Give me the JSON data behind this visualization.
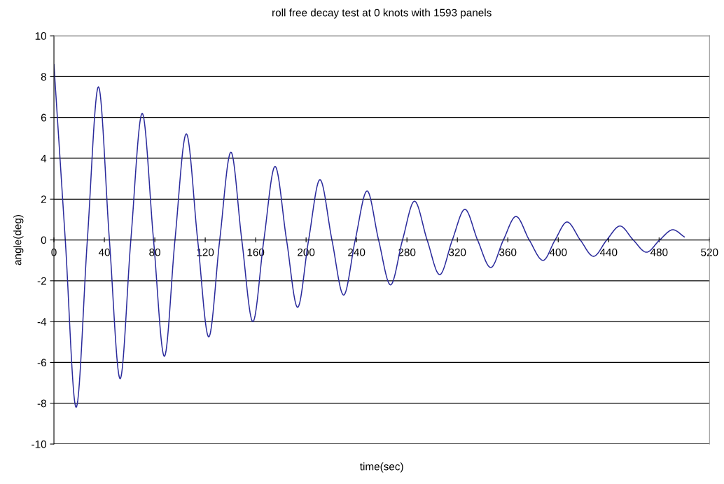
{
  "chart_data": {
    "type": "line",
    "title": "roll free decay test at 0 knots with 1593 panels",
    "xlabel": "time(sec)",
    "ylabel": "angle(deg)",
    "x": [
      0,
      9,
      17.6,
      26.5,
      35.3,
      44,
      52.5,
      61,
      70,
      79,
      87.6,
      96,
      105,
      114,
      122.8,
      131.5,
      140.4,
      149,
      157.8,
      166.5,
      175.4,
      184.5,
      193.3,
      202,
      211,
      220.5,
      229.8,
      239,
      248.4,
      257.5,
      267,
      276.5,
      286,
      296,
      306,
      316,
      326,
      336,
      346.5,
      356.5,
      366.5,
      377,
      388,
      397.5,
      407,
      417.5,
      428,
      438.5,
      449,
      459.5,
      470,
      480.5,
      491,
      500
    ],
    "series": [
      {
        "color": "#2b2b9c",
        "values": [
          8.6,
          0,
          -8.2,
          0,
          7.5,
          0,
          -6.8,
          0,
          6.2,
          0,
          -5.7,
          0,
          5.2,
          0,
          -4.75,
          0,
          4.3,
          0,
          -4.0,
          0,
          3.6,
          0,
          -3.3,
          0,
          2.95,
          0,
          -2.7,
          0,
          2.4,
          0,
          -2.2,
          0,
          1.9,
          0,
          -1.7,
          0,
          1.5,
          0,
          -1.35,
          0,
          1.15,
          0,
          -1.0,
          0,
          0.88,
          0,
          -0.8,
          0,
          0.68,
          0,
          -0.6,
          0,
          0.5,
          0.15
        ]
      }
    ],
    "xlim": [
      0,
      520
    ],
    "xticks": [
      0,
      40,
      80,
      120,
      160,
      200,
      240,
      280,
      320,
      360,
      400,
      440,
      480,
      520
    ],
    "ylim": [
      -10,
      10
    ],
    "yticks": [
      -10,
      -8,
      -6,
      -4,
      -2,
      0,
      2,
      4,
      6,
      8,
      10
    ],
    "grid": "y",
    "marker": "none",
    "line_style": "solid"
  }
}
